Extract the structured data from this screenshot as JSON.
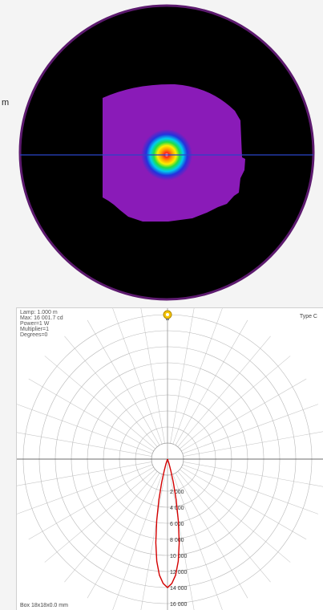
{
  "beam_view": {
    "side_label": "m"
  },
  "polar_view": {
    "info": {
      "lamp": "Lamp: 1.000 m",
      "max": "Max: 16 001.7 cd",
      "power": "Power=1 W",
      "multiplier": "Multiplier=1",
      "degrees": "Degrees=0"
    },
    "type_label": "Type C",
    "box_label": "Box 18x18x0.0 mm",
    "ring_labels": [
      "2 000",
      "4 000",
      "6 000",
      "8 000",
      "10 000",
      "12 000",
      "14 000",
      "16 000"
    ],
    "curve_color": "#d40000"
  },
  "chart_data": {
    "type": "polar",
    "r_ticks": [
      2000,
      4000,
      6000,
      8000,
      10000,
      12000,
      14000,
      16000
    ],
    "r_unit": "cd",
    "series": [
      {
        "name": "",
        "angle_deg": [
          0,
          2,
          4,
          6,
          8,
          10,
          12,
          14,
          16,
          18,
          20
        ],
        "intensity": [
          16001.7,
          15500,
          14500,
          12800,
          10500,
          7800,
          5200,
          3000,
          1500,
          600,
          0
        ]
      }
    ]
  }
}
